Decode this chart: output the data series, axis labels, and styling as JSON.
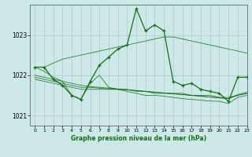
{
  "title": "Graphe pression niveau de la mer (hPa)",
  "background_color": "#cce8e8",
  "grid_color": "#aacccc",
  "line_color": "#1a6b1a",
  "xlim": [
    -0.5,
    23
  ],
  "ylim": [
    1020.75,
    1023.75
  ],
  "yticks": [
    1021,
    1022,
    1023
  ],
  "xticks": [
    0,
    1,
    2,
    3,
    4,
    5,
    6,
    7,
    8,
    9,
    10,
    11,
    12,
    13,
    14,
    15,
    16,
    17,
    18,
    19,
    20,
    21,
    22,
    23
  ],
  "line1": [
    1022.2,
    1022.2,
    1022.3,
    1022.4,
    1022.45,
    1022.5,
    1022.55,
    1022.6,
    1022.65,
    1022.7,
    1022.75,
    1022.8,
    1022.85,
    1022.9,
    1022.95,
    1022.95,
    1022.9,
    1022.85,
    1022.8,
    1022.75,
    1022.7,
    1022.65,
    1022.6,
    1022.55
  ],
  "line2": [
    1021.9,
    1021.85,
    1021.8,
    1021.75,
    1021.7,
    1021.65,
    1021.65,
    1021.65,
    1021.65,
    1021.65,
    1021.65,
    1021.6,
    1021.6,
    1021.55,
    1021.55,
    1021.55,
    1021.55,
    1021.5,
    1021.5,
    1021.5,
    1021.45,
    1021.45,
    1021.5,
    1021.55
  ],
  "line3": [
    1021.95,
    1021.9,
    1021.85,
    1021.8,
    1021.75,
    1021.7,
    1021.7,
    1021.68,
    1021.66,
    1021.65,
    1021.64,
    1021.62,
    1021.6,
    1021.58,
    1021.56,
    1021.54,
    1021.52,
    1021.5,
    1021.48,
    1021.46,
    1021.44,
    1021.42,
    1021.5,
    1021.55
  ],
  "line4": [
    1022.0,
    1021.95,
    1021.9,
    1021.85,
    1021.8,
    1021.75,
    1021.72,
    1021.7,
    1021.68,
    1021.66,
    1021.64,
    1021.62,
    1021.6,
    1021.58,
    1021.56,
    1021.54,
    1021.52,
    1021.5,
    1021.48,
    1021.46,
    1021.44,
    1021.42,
    1021.52,
    1021.58
  ],
  "zigzag": [
    1022.2,
    1022.1,
    1021.95,
    1021.85,
    1021.5,
    1021.4,
    1021.8,
    1022.0,
    1021.7,
    1021.65,
    1021.6,
    1021.55,
    1021.5,
    1021.5,
    1021.48,
    1021.45,
    1021.42,
    1021.4,
    1021.38,
    1021.36,
    1021.35,
    1021.3,
    1021.45,
    1021.5
  ],
  "main_series_x": [
    0,
    1,
    2,
    3,
    4,
    5,
    6,
    7,
    8,
    9,
    10,
    11,
    12,
    13,
    14,
    15,
    16,
    17,
    18,
    19,
    20,
    21,
    22,
    23
  ],
  "main_series": [
    1022.2,
    1022.2,
    1021.9,
    1021.75,
    1021.5,
    1021.4,
    1021.85,
    1022.25,
    1022.45,
    1022.65,
    1022.75,
    1023.65,
    1023.1,
    1023.25,
    1023.1,
    1021.85,
    1021.75,
    1021.8,
    1021.65,
    1021.6,
    1021.55,
    1021.35,
    1021.95,
    1021.95
  ]
}
